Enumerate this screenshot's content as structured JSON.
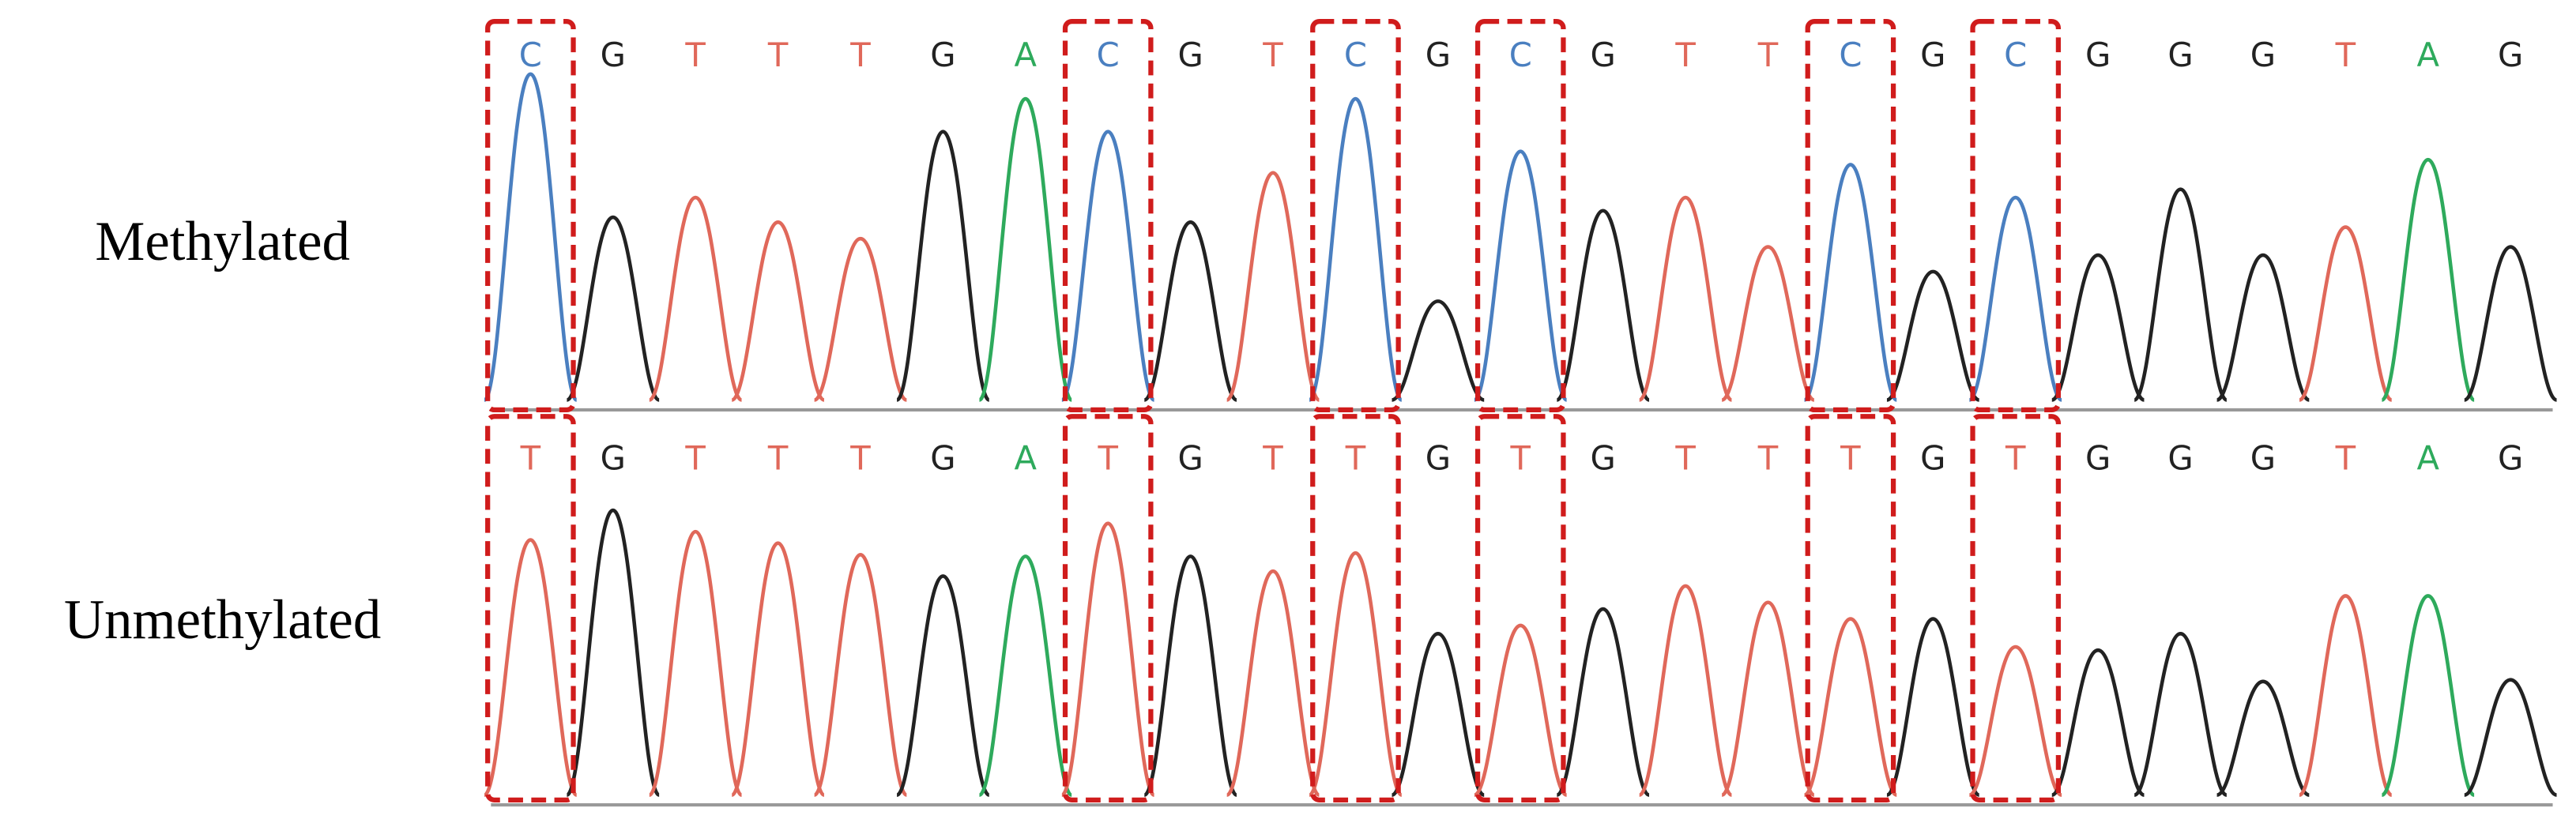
{
  "tracks": [
    {
      "label": "Methylated",
      "bases": [
        "C",
        "G",
        "T",
        "T",
        "T",
        "G",
        "A",
        "C",
        "G",
        "T",
        "C",
        "G",
        "C",
        "G",
        "T",
        "T",
        "C",
        "G",
        "C",
        "G",
        "G",
        "G",
        "T",
        "A",
        "G"
      ],
      "peaks": [
        198,
        111,
        123,
        108,
        98,
        163,
        183,
        163,
        108,
        138,
        183,
        60,
        151,
        115,
        123,
        93,
        143,
        78,
        123,
        88,
        128,
        88,
        105,
        146,
        93
      ]
    },
    {
      "label": "Unmethylated",
      "bases": [
        "T",
        "G",
        "T",
        "T",
        "T",
        "G",
        "A",
        "T",
        "G",
        "T",
        "T",
        "G",
        "T",
        "G",
        "T",
        "T",
        "T",
        "G",
        "T",
        "G",
        "G",
        "G",
        "T",
        "A",
        "G"
      ],
      "peaks": [
        155,
        173,
        160,
        153,
        146,
        133,
        145,
        165,
        145,
        136,
        147,
        98,
        103,
        113,
        127,
        117,
        107,
        107,
        90,
        88,
        98,
        69,
        121,
        121,
        70
      ]
    }
  ],
  "base_colors": {
    "A": "#2eaa5c",
    "C": "#4a7fc0",
    "G": "#222222",
    "T": "#e0685a"
  },
  "highlighted": [
    0,
    7,
    10,
    12,
    16,
    18
  ]
}
